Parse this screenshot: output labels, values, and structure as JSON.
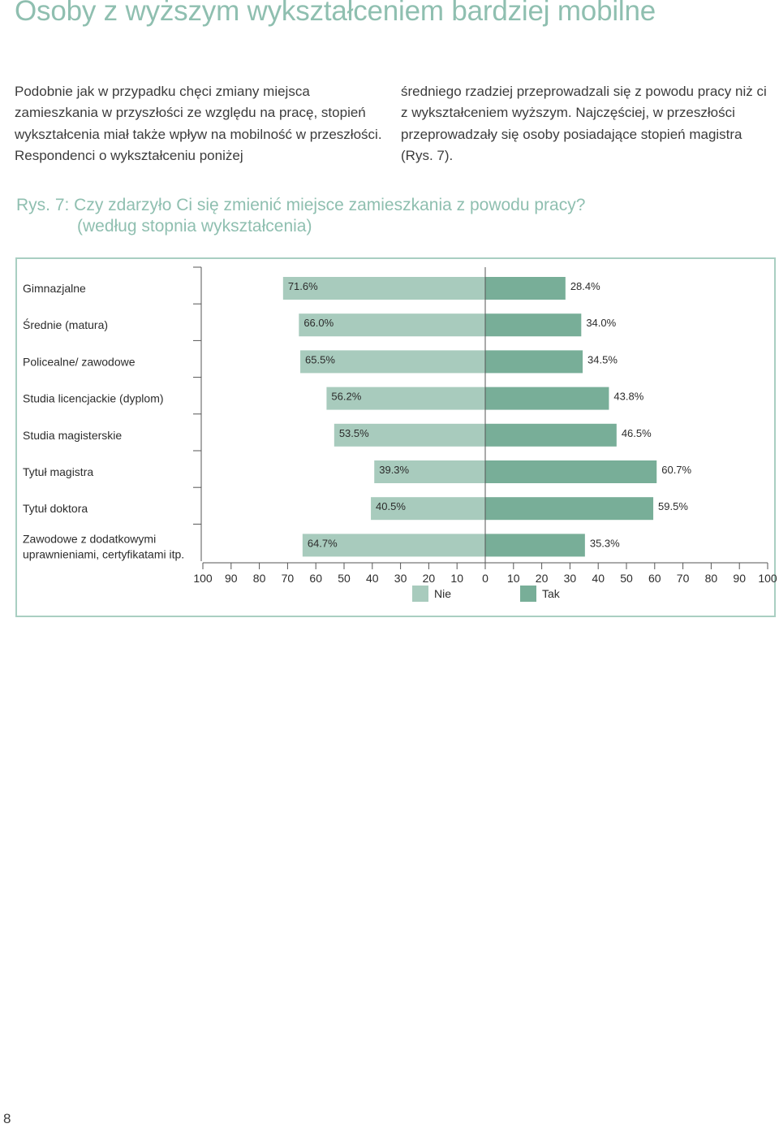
{
  "page": {
    "heading": "Osoby z wyższym wykształceniem bardziej mobilne",
    "column_left": "Podobnie jak w przypadku chęci zmiany miejsca zamieszkania w przyszłości ze względu na pracę, stopień wykształcenia miał także wpływ na mobilność w przeszłości. Respondenci o wykształceniu poniżej",
    "column_right": "średniego rzadziej przeprowadzali się z powodu pracy niż ci z wykształceniem wyższym. Najczęściej, w przeszłości przeprowadzały się osoby posiadające stopień magistra (Rys. 7).",
    "figure_caption_line1": "Rys. 7: Czy zdarzyło Ci się zmienić miejsce zamieszkania z powodu pracy?",
    "figure_caption_line2": "(według stopnia wykształcenia)",
    "page_number": "8"
  },
  "chart_data": {
    "type": "bar",
    "orientation": "horizontal-diverging",
    "categories": [
      "Gimnazjalne",
      "Średnie (matura)",
      "Policealne/ zawodowe",
      "Studia licencjackie (dyplom)",
      "Studia magisterskie",
      "Tytuł magistra",
      "Tytuł doktora",
      "Zawodowe z dodatkowymi uprawnieniami, certyfikatami itp."
    ],
    "series": [
      {
        "name": "Nie",
        "color": "#a8cbbd",
        "values": [
          71.6,
          66.0,
          65.5,
          56.2,
          53.5,
          39.3,
          40.5,
          64.7
        ],
        "labels": [
          "71.6%",
          "66.0%",
          "65.5%",
          "56.2%",
          "53.5%",
          "39.3%",
          "40.5%",
          "64.7%"
        ]
      },
      {
        "name": "Tak",
        "color": "#78ae98",
        "values": [
          28.4,
          34.0,
          34.5,
          43.8,
          46.5,
          60.7,
          59.5,
          35.3
        ],
        "labels": [
          "28.4%",
          "34.0%",
          "34.5%",
          "43.8%",
          "46.5%",
          "60.7%",
          "59.5%",
          "35.3%"
        ]
      }
    ],
    "xlim": [
      -100,
      100
    ],
    "x_ticks": [
      -100,
      -90,
      -80,
      -70,
      -60,
      -50,
      -40,
      -30,
      -20,
      -10,
      0,
      10,
      20,
      30,
      40,
      50,
      60,
      70,
      80,
      90,
      100
    ],
    "x_tick_labels": [
      "100",
      "90",
      "80",
      "70",
      "60",
      "50",
      "40",
      "30",
      "20",
      "10",
      "0",
      "10",
      "20",
      "30",
      "40",
      "50",
      "60",
      "70",
      "80",
      "90",
      "100"
    ],
    "legend_position": "bottom",
    "grid": false
  }
}
